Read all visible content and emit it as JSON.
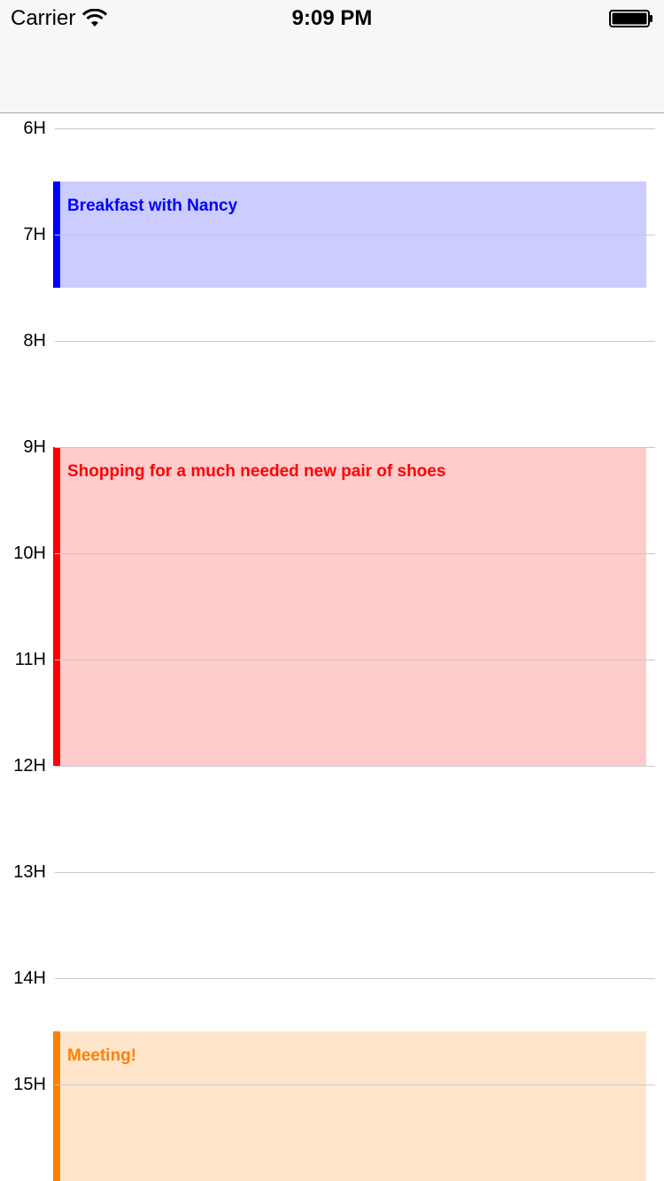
{
  "status_bar": {
    "carrier": "Carrier",
    "time": "9:09 PM",
    "wifi_icon": "wifi-icon",
    "battery_icon": "battery-full-icon"
  },
  "timeline": {
    "hours": [
      "6H",
      "7H",
      "8H",
      "9H",
      "10H",
      "11H",
      "12H",
      "13H",
      "14H",
      "15H"
    ]
  },
  "events": [
    {
      "title": "Breakfast with Nancy",
      "start_hour": 6.5,
      "end_hour": 7.5,
      "accent_color": "#0000ff",
      "fill_color": "#ccccff"
    },
    {
      "title": "Shopping for a much needed new pair of shoes",
      "start_hour": 9,
      "end_hour": 12,
      "accent_color": "#ff0000",
      "fill_color": "#ffcccc"
    },
    {
      "title": "Meeting!",
      "start_hour": 14.5,
      "end_hour": 16,
      "accent_color": "#ff8000",
      "fill_color": "#ffe6cc"
    }
  ]
}
